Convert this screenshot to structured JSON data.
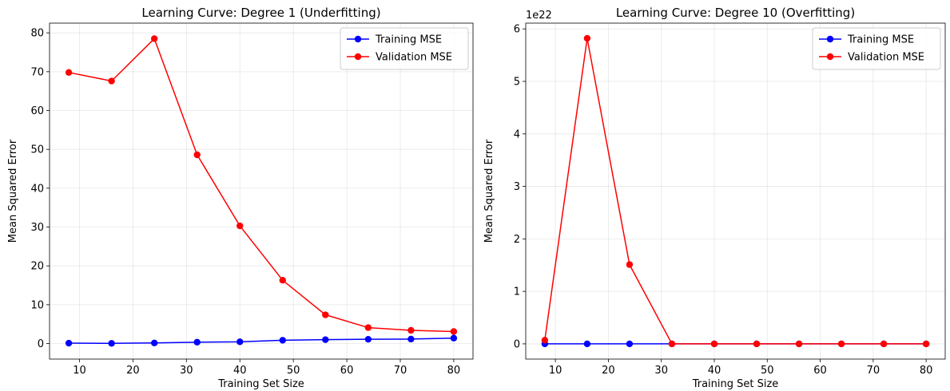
{
  "chart_data": [
    {
      "type": "line",
      "title": "Learning Curve: Degree 1 (Underfitting)",
      "xlabel": "Training Set Size",
      "ylabel": "Mean Squared Error",
      "xlim": [
        4.4,
        83.6
      ],
      "ylim": [
        -4.0,
        82.5
      ],
      "xticks": [
        10,
        20,
        30,
        40,
        50,
        60,
        70,
        80
      ],
      "yticks": [
        0,
        10,
        20,
        30,
        40,
        50,
        60,
        70,
        80
      ],
      "offset_label": "",
      "grid": true,
      "legend": "top-right",
      "x": [
        8,
        16,
        24,
        32,
        40,
        48,
        56,
        64,
        72,
        80
      ],
      "series": [
        {
          "name": "Training MSE",
          "color": "#0000ff",
          "values": [
            0.1,
            0.05,
            0.15,
            0.35,
            0.45,
            0.85,
            1.0,
            1.1,
            1.15,
            1.4
          ]
        },
        {
          "name": "Validation MSE",
          "color": "#ff0000",
          "values": [
            69.8,
            67.6,
            78.5,
            48.6,
            30.3,
            16.3,
            7.4,
            4.1,
            3.4,
            3.1
          ]
        }
      ]
    },
    {
      "type": "line",
      "title": "Learning Curve: Degree 10 (Overfitting)",
      "xlabel": "Training Set Size",
      "ylabel": "Mean Squared Error",
      "xlim": [
        4.4,
        83.6
      ],
      "ylim": [
        -0.29,
        6.11
      ],
      "xticks": [
        10,
        20,
        30,
        40,
        50,
        60,
        70,
        80
      ],
      "yticks": [
        0,
        1,
        2,
        3,
        4,
        5,
        6
      ],
      "offset_label": "1e22",
      "grid": true,
      "legend": "top-right",
      "x": [
        8,
        16,
        24,
        32,
        40,
        48,
        56,
        64,
        72,
        80
      ],
      "series": [
        {
          "name": "Training MSE",
          "color": "#0000ff",
          "values": [
            0,
            0,
            0,
            0,
            0,
            0,
            0,
            0,
            0,
            0
          ]
        },
        {
          "name": "Validation MSE",
          "color": "#ff0000",
          "values": [
            0.07,
            5.82,
            1.51,
            0,
            0,
            0,
            0,
            0,
            0,
            0
          ]
        }
      ]
    }
  ]
}
